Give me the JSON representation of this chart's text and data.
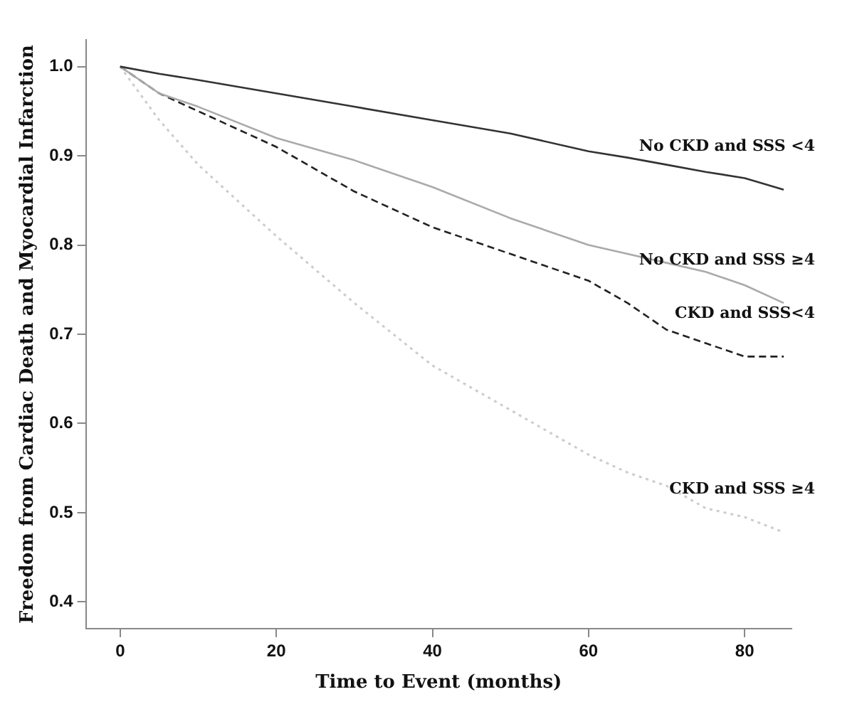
{
  "chart_data": {
    "type": "line",
    "xlabel": "Time to Event (months)",
    "ylabel": "Freedom from Cardiac Death and Myocardial Infarction",
    "x": [
      0,
      5,
      10,
      20,
      30,
      40,
      50,
      60,
      65,
      70,
      75,
      80,
      85
    ],
    "series": [
      {
        "name": "No CKD and SSS <4",
        "color": "#333333",
        "line_style": "solid",
        "values": [
          1.0,
          0.992,
          0.985,
          0.97,
          0.955,
          0.94,
          0.925,
          0.905,
          0.898,
          0.89,
          0.882,
          0.875,
          0.862
        ]
      },
      {
        "name": "No CKD and SSS ≥4",
        "color": "#aaaaaa",
        "line_style": "solid",
        "values": [
          1.0,
          0.97,
          0.955,
          0.92,
          0.895,
          0.865,
          0.83,
          0.8,
          0.79,
          0.78,
          0.77,
          0.755,
          0.735
        ]
      },
      {
        "name": "CKD and SSS<4",
        "color": "#222222",
        "line_style": "dashed",
        "values": [
          1.0,
          0.97,
          0.95,
          0.91,
          0.86,
          0.82,
          0.79,
          0.76,
          0.735,
          0.705,
          0.69,
          0.675,
          0.675
        ]
      },
      {
        "name": "CKD and SSS ≥4",
        "color": "#cccccc",
        "line_style": "dotted",
        "values": [
          1.0,
          0.94,
          0.89,
          0.81,
          0.735,
          0.665,
          0.615,
          0.565,
          0.545,
          0.53,
          0.505,
          0.495,
          0.478
        ]
      }
    ],
    "xlim": [
      -4.4,
      86
    ],
    "ylim": [
      0.37,
      1.03
    ],
    "xticks": [
      0,
      20,
      40,
      60,
      80
    ],
    "yticks": [
      {
        "value": 0.4,
        "label": "0.4"
      },
      {
        "value": 0.5,
        "label": "0.5"
      },
      {
        "value": 0.6,
        "label": "0.6"
      },
      {
        "value": 0.7,
        "label": "0.7"
      },
      {
        "value": 0.8,
        "label": "0.8"
      },
      {
        "value": 0.9,
        "label": "0.9"
      },
      {
        "value": 1,
        "label": "1.0"
      }
    ],
    "grid": false,
    "legend": false,
    "marker": "none"
  }
}
